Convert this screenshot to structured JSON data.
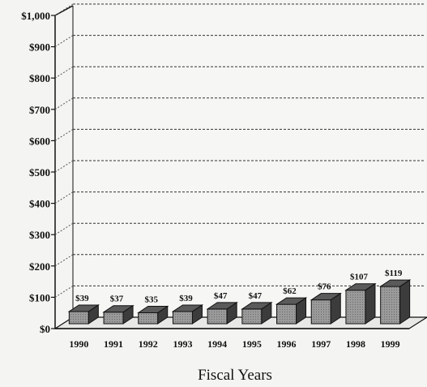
{
  "chart_data": {
    "type": "bar",
    "categories": [
      "1990",
      "1991",
      "1992",
      "1993",
      "1994",
      "1995",
      "1996",
      "1997",
      "1998",
      "1999"
    ],
    "values": [
      39,
      37,
      35,
      39,
      47,
      47,
      62,
      76,
      107,
      119
    ],
    "data_labels": [
      "$39",
      "$37",
      "$35",
      "$39",
      "$47",
      "$47",
      "$62",
      "$76",
      "$107",
      "$119"
    ],
    "title": "",
    "xlabel": "Fiscal Years",
    "ylabel": "",
    "ylim": [
      0,
      1000
    ],
    "yticks": [
      0,
      100,
      200,
      300,
      400,
      500,
      600,
      700,
      800,
      900,
      1000
    ],
    "ytick_labels": [
      "$0",
      "$100",
      "$200",
      "$300",
      "$400",
      "$500",
      "$600",
      "$700",
      "$800",
      "$900",
      "$1,000"
    ],
    "grid": true,
    "legend": "none",
    "style": "3d",
    "bar_color": "#8c8c8c"
  }
}
